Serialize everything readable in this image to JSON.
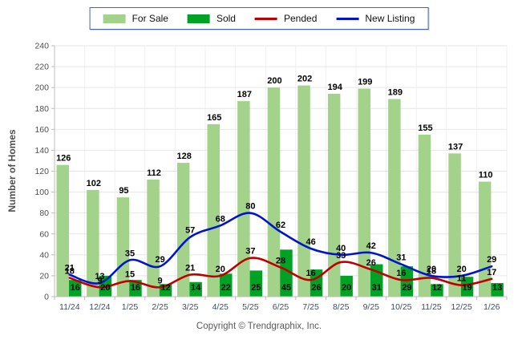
{
  "footer": {
    "copyright": "Copyright © Trendgraphix, Inc."
  },
  "colors": {
    "for_sale": "#a3d38a",
    "sold": "#00a226",
    "pended": "#c00000",
    "new_listing": "#0014cc",
    "grid_h": "#e6e6e6",
    "grid_v": "#f0f0f0",
    "axis": "#bcbcbc",
    "x_tick_label": "#3c4e6e",
    "y_tick_label": "#4e4e4e",
    "data_label": "#000000"
  },
  "chart_data": {
    "type": "bar",
    "subtype": "grouped bars with smooth overlay lines",
    "title": "",
    "xlabel": "",
    "ylabel": "Number of Homes",
    "ylim": [
      0,
      240
    ],
    "ytick_step": 20,
    "grid": true,
    "legend_position": "top-center",
    "categories": [
      "11/24",
      "12/24",
      "1/25",
      "2/25",
      "3/25",
      "4/25",
      "5/25",
      "6/25",
      "7/25",
      "8/25",
      "9/25",
      "10/25",
      "11/25",
      "12/25",
      "1/26"
    ],
    "series": [
      {
        "name": "For Sale",
        "type": "bar",
        "color": "#a3d38a",
        "values": [
          126,
          102,
          95,
          112,
          128,
          165,
          187,
          200,
          202,
          194,
          199,
          189,
          155,
          137,
          110
        ]
      },
      {
        "name": "Sold",
        "type": "bar",
        "color": "#00a226",
        "values": [
          16,
          20,
          16,
          12,
          14,
          22,
          25,
          45,
          26,
          20,
          31,
          29,
          12,
          19,
          13
        ]
      },
      {
        "name": "Pended",
        "type": "line",
        "color": "#c00000",
        "values": [
          18,
          9,
          15,
          9,
          21,
          20,
          37,
          28,
          16,
          33,
          26,
          16,
          18,
          11,
          17
        ]
      },
      {
        "name": "New Listing",
        "type": "line",
        "color": "#0014cc",
        "values": [
          21,
          13,
          35,
          29,
          57,
          68,
          80,
          62,
          46,
          40,
          42,
          31,
          20,
          20,
          29
        ]
      }
    ]
  }
}
